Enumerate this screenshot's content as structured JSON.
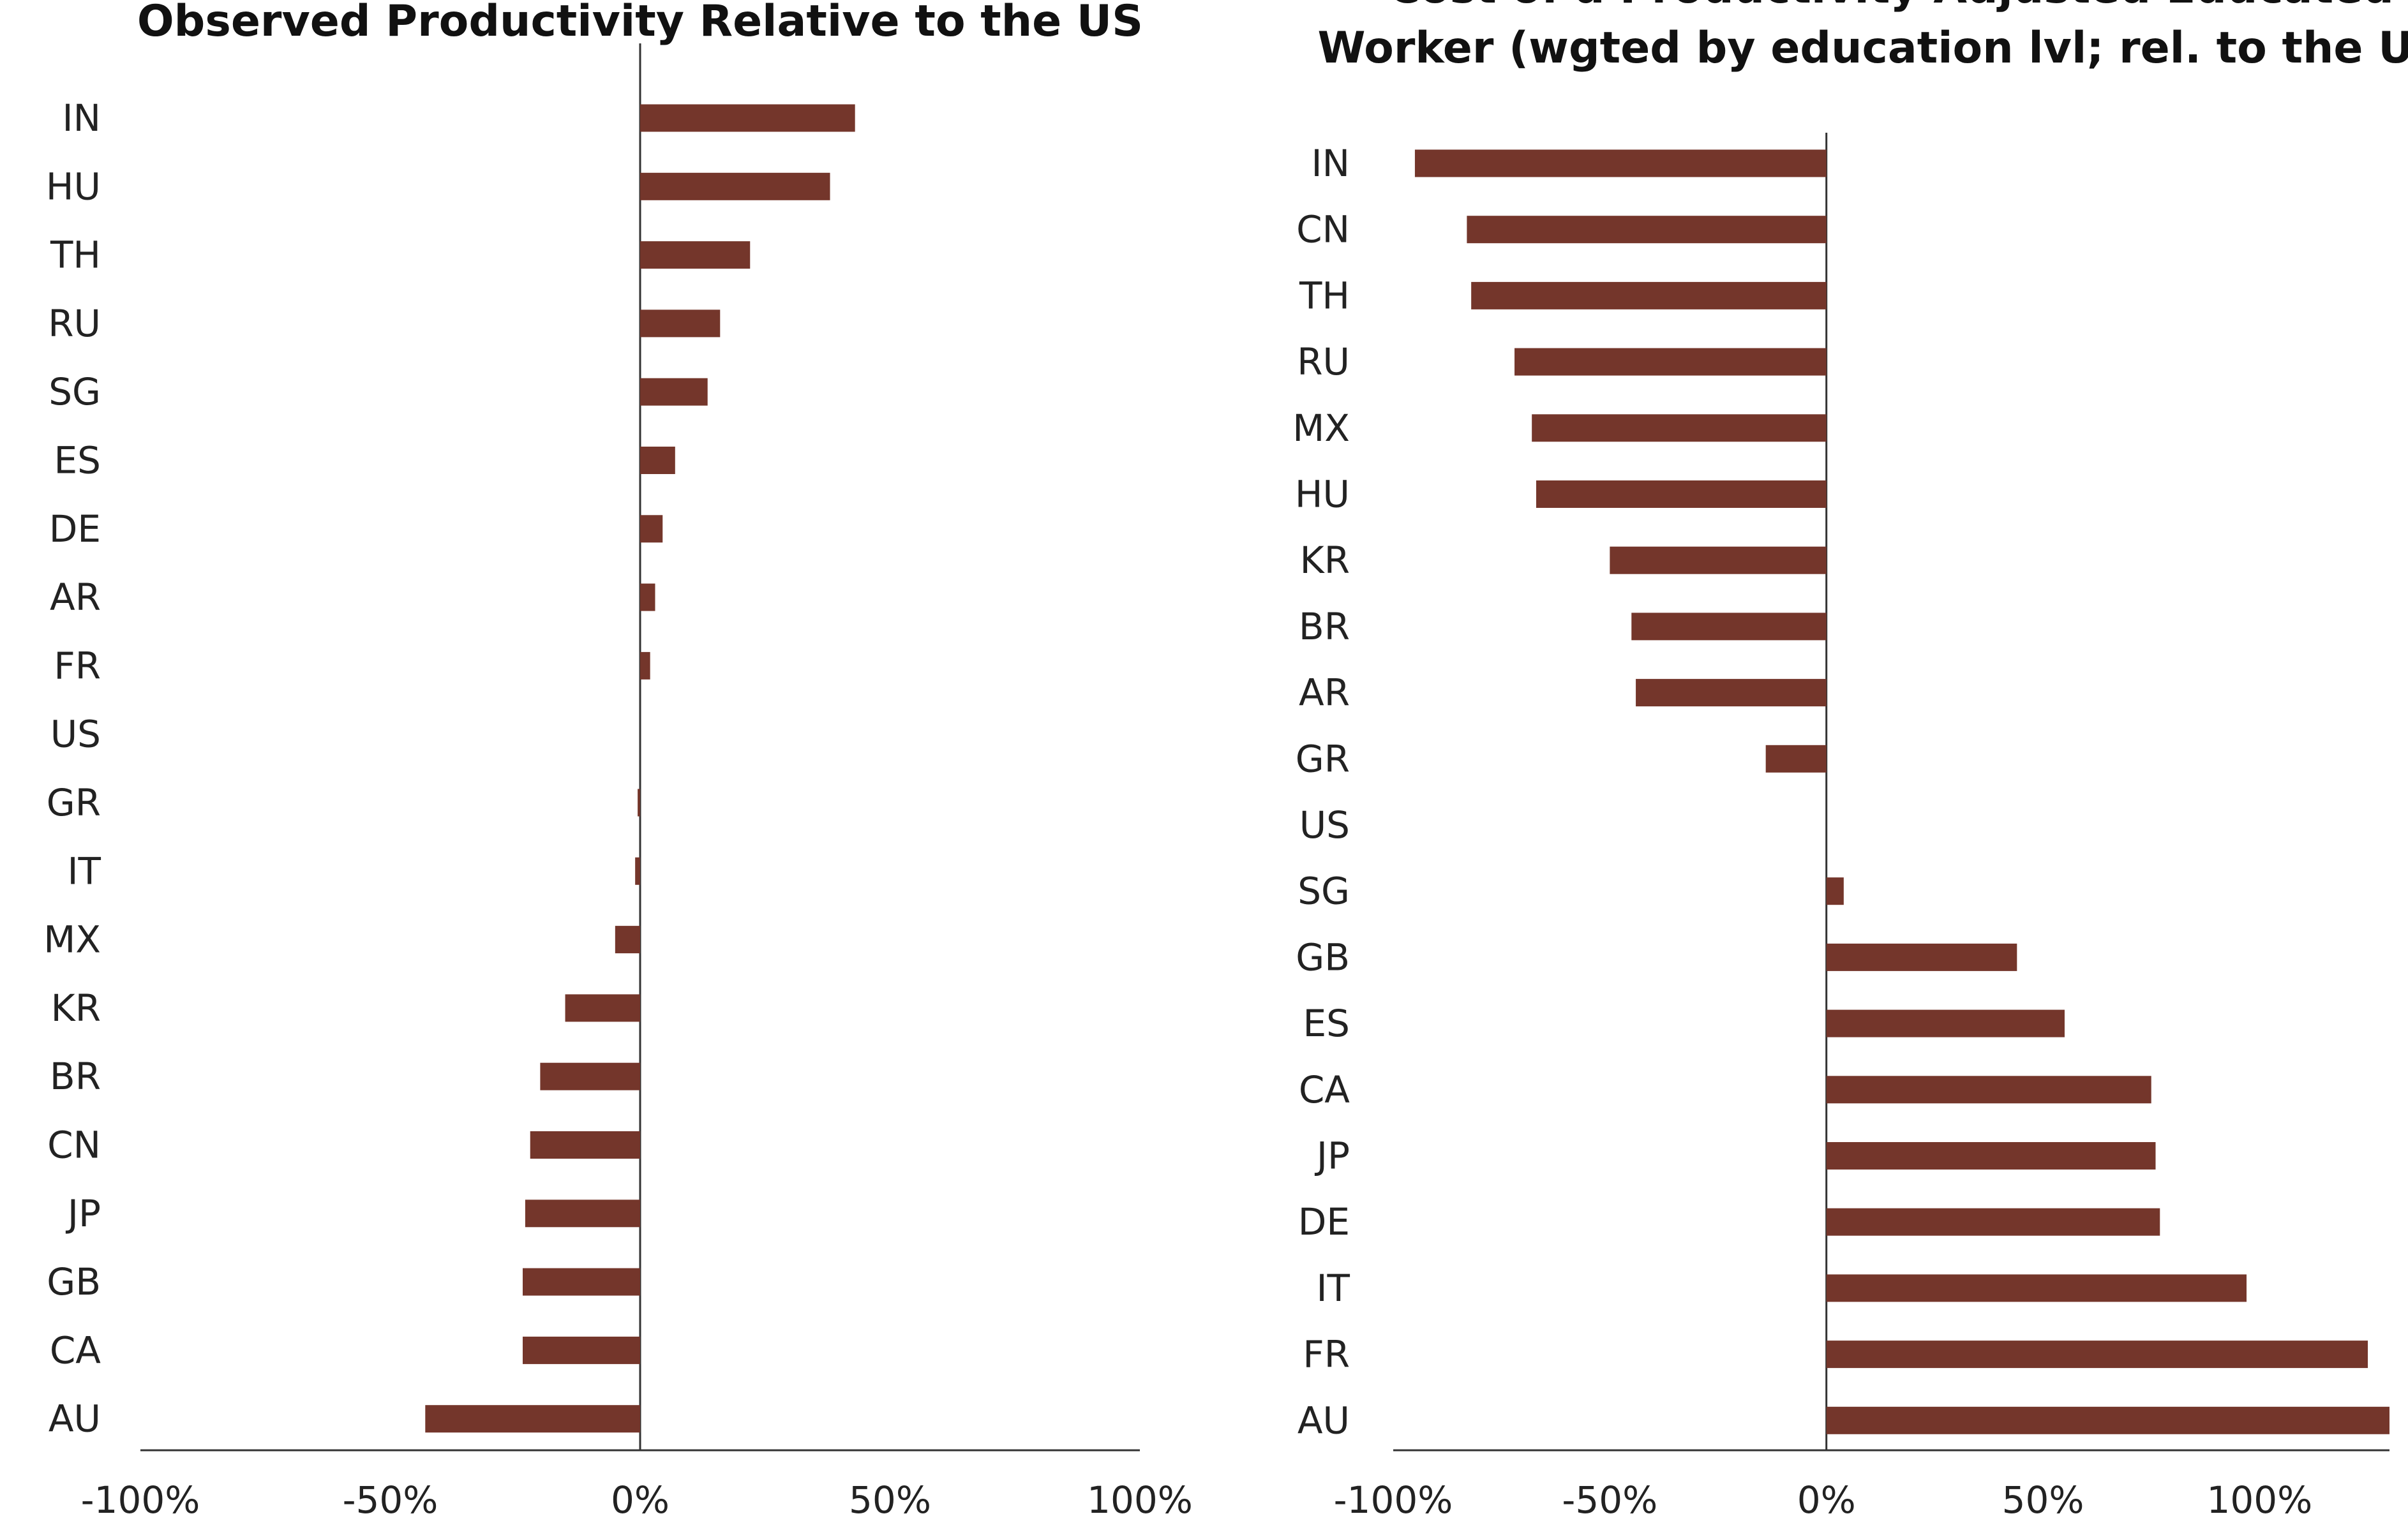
{
  "colors": {
    "bar": "#74362b",
    "axis": "#333333",
    "text": "#222222"
  },
  "chart_data": [
    {
      "type": "bar",
      "orientation": "horizontal",
      "title": "Observed Productivity Relative to the US",
      "categories": [
        "IN",
        "HU",
        "TH",
        "RU",
        "SG",
        "ES",
        "DE",
        "AR",
        "FR",
        "US",
        "GR",
        "IT",
        "MX",
        "KR",
        "BR",
        "CN",
        "JP",
        "GB",
        "CA",
        "AU"
      ],
      "values": [
        43,
        38,
        22,
        16,
        13.5,
        7,
        4.5,
        3,
        2,
        0,
        -0.5,
        -1,
        -5,
        -15,
        -20,
        -22,
        -23,
        -23.5,
        -23.5,
        -43
      ],
      "xlim": [
        -100,
        100
      ],
      "xticks": [
        "-100%",
        "-50%",
        "0%",
        "50%",
        "100%"
      ],
      "xtick_values": [
        -100,
        -50,
        0,
        50,
        100
      ],
      "grid": false,
      "legend": "none"
    },
    {
      "type": "bar",
      "orientation": "horizontal",
      "title": "Cost of a Productivity Adjusted Educated Worker (wgted by education lvl;  rel. to the US)",
      "title_lines": [
        "Cost of a Productivity Adjusted Educated",
        "Worker (wgted by education lvl;  rel. to the US)"
      ],
      "categories": [
        "IN",
        "CN",
        "TH",
        "RU",
        "MX",
        "HU",
        "KR",
        "BR",
        "AR",
        "GR",
        "US",
        "SG",
        "GB",
        "ES",
        "CA",
        "JP",
        "DE",
        "IT",
        "FR",
        "AU"
      ],
      "values": [
        -95,
        -83,
        -82,
        -72,
        -68,
        -67,
        -50,
        -45,
        -44,
        -14,
        0,
        4,
        44,
        55,
        75,
        76,
        77,
        97,
        125,
        130
      ],
      "xlim": [
        -100,
        130
      ],
      "xticks": [
        "-100%",
        "-50%",
        "0%",
        "50%",
        "100%"
      ],
      "xtick_values": [
        -100,
        -50,
        0,
        50,
        100
      ],
      "grid": false,
      "legend": "none"
    }
  ]
}
